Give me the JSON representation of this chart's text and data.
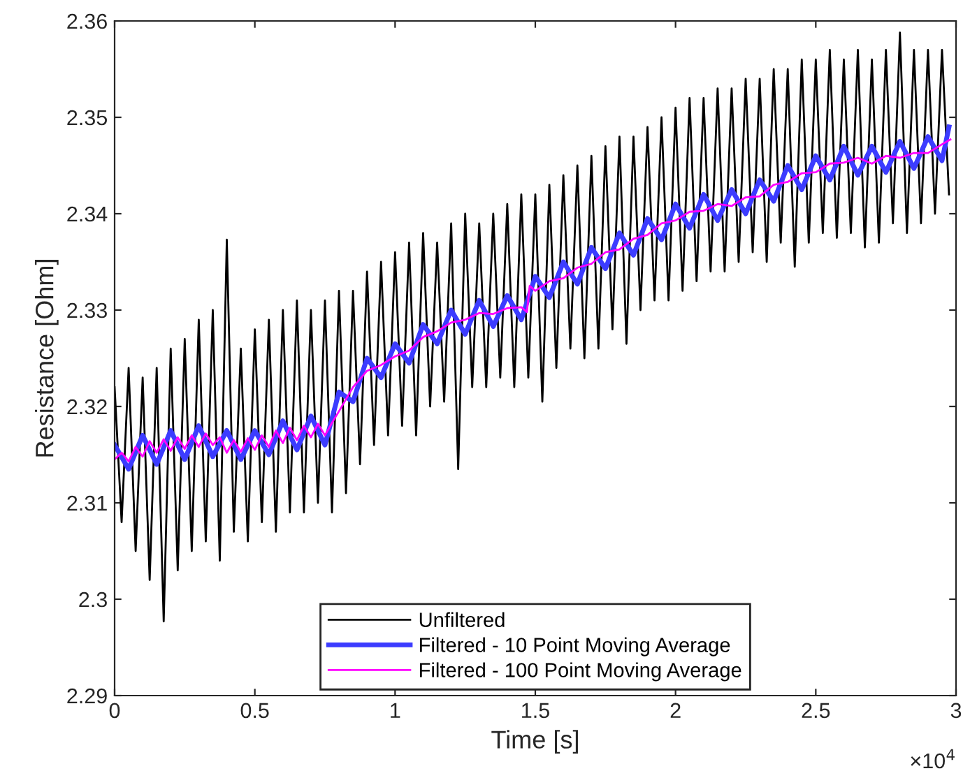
{
  "chart_data": {
    "type": "line",
    "xlabel": "Time [s]",
    "ylabel": "Resistance [Ohm]",
    "xlim": [
      0,
      3
    ],
    "ylim": [
      2.29,
      2.36
    ],
    "xticks": [
      0,
      0.5,
      1,
      1.5,
      2,
      2.5,
      3
    ],
    "yticks": [
      2.29,
      2.3,
      2.31,
      2.32,
      2.33,
      2.34,
      2.35,
      2.36
    ],
    "annotations": [
      "×10$^{4}$"
    ],
    "grid": false,
    "legend": "bottom",
    "series": [
      {
        "name": "Unfiltered",
        "color": "#000000",
        "x": [
          0,
          0.025,
          0.05,
          0.075,
          0.1,
          0.125,
          0.15,
          0.175,
          0.2,
          0.225,
          0.25,
          0.275,
          0.3,
          0.325,
          0.35,
          0.375,
          0.4,
          0.425,
          0.45,
          0.475,
          0.5,
          0.525,
          0.55,
          0.575,
          0.6,
          0.625,
          0.65,
          0.675,
          0.7,
          0.725,
          0.75,
          0.775,
          0.8,
          0.825,
          0.85,
          0.875,
          0.9,
          0.925,
          0.95,
          0.975,
          1,
          1.025,
          1.05,
          1.075,
          1.1,
          1.125,
          1.15,
          1.175,
          1.2,
          1.225,
          1.25,
          1.275,
          1.3,
          1.325,
          1.35,
          1.375,
          1.4,
          1.425,
          1.45,
          1.475,
          1.5,
          1.525,
          1.55,
          1.575,
          1.6,
          1.625,
          1.65,
          1.675,
          1.7,
          1.725,
          1.75,
          1.775,
          1.8,
          1.825,
          1.85,
          1.875,
          1.9,
          1.925,
          1.95,
          1.975,
          2,
          2.025,
          2.05,
          2.075,
          2.1,
          2.125,
          2.15,
          2.175,
          2.2,
          2.225,
          2.25,
          2.275,
          2.3,
          2.325,
          2.35,
          2.375,
          2.4,
          2.425,
          2.45,
          2.475,
          2.5,
          2.525,
          2.55,
          2.575,
          2.6,
          2.625,
          2.65,
          2.675,
          2.7,
          2.725,
          2.75,
          2.775,
          2.8,
          2.825,
          2.85,
          2.875,
          2.9,
          2.925,
          2.95,
          2.975
        ],
        "values": [
          2.322,
          2.308,
          2.324,
          2.305,
          2.323,
          2.302,
          2.324,
          2.2977,
          2.326,
          2.303,
          2.327,
          2.305,
          2.329,
          2.306,
          2.33,
          2.304,
          2.3373,
          2.307,
          2.326,
          2.306,
          2.328,
          2.308,
          2.329,
          2.307,
          2.33,
          2.309,
          2.331,
          2.309,
          2.33,
          2.31,
          2.331,
          2.309,
          2.332,
          2.311,
          2.332,
          2.314,
          2.334,
          2.316,
          2.335,
          2.317,
          2.336,
          2.318,
          2.337,
          2.317,
          2.338,
          2.32,
          2.337,
          2.3205,
          2.339,
          2.3135,
          2.34,
          2.322,
          2.339,
          2.322,
          2.34,
          2.323,
          2.341,
          2.322,
          2.342,
          2.323,
          2.342,
          2.3205,
          2.343,
          2.324,
          2.344,
          2.326,
          2.345,
          2.325,
          2.346,
          2.326,
          2.347,
          2.328,
          2.348,
          2.3265,
          2.348,
          2.33,
          2.349,
          2.331,
          2.35,
          2.331,
          2.351,
          2.332,
          2.352,
          2.333,
          2.352,
          2.334,
          2.353,
          2.334,
          2.353,
          2.335,
          2.354,
          2.336,
          2.354,
          2.335,
          2.355,
          2.337,
          2.355,
          2.3345,
          2.356,
          2.337,
          2.356,
          2.338,
          2.357,
          2.3375,
          2.356,
          2.338,
          2.357,
          2.3365,
          2.356,
          2.337,
          2.357,
          2.339,
          2.3588,
          2.338,
          2.357,
          2.339,
          2.357,
          2.34,
          2.357,
          2.342
        ]
      },
      {
        "name": "Filtered - 10 Point Moving Average",
        "color": "#3c3cff",
        "x": [
          0,
          0.05,
          0.1,
          0.15,
          0.2,
          0.25,
          0.3,
          0.35,
          0.4,
          0.45,
          0.5,
          0.55,
          0.6,
          0.65,
          0.7,
          0.75,
          0.8,
          0.85,
          0.9,
          0.95,
          1,
          1.05,
          1.1,
          1.15,
          1.2,
          1.25,
          1.3,
          1.35,
          1.4,
          1.45,
          1.5,
          1.55,
          1.6,
          1.65,
          1.7,
          1.75,
          1.8,
          1.85,
          1.9,
          1.95,
          2,
          2.05,
          2.1,
          2.15,
          2.2,
          2.25,
          2.3,
          2.35,
          2.4,
          2.45,
          2.5,
          2.55,
          2.6,
          2.65,
          2.7,
          2.75,
          2.8,
          2.85,
          2.9,
          2.95,
          2.975
        ],
        "values": [
          2.316,
          2.3135,
          2.317,
          2.314,
          2.3175,
          2.3145,
          2.318,
          2.3148,
          2.3175,
          2.3145,
          2.3175,
          2.315,
          2.3185,
          2.3155,
          2.319,
          2.316,
          2.3215,
          2.3205,
          2.325,
          2.323,
          2.3265,
          2.3245,
          2.3285,
          2.3265,
          2.33,
          2.3275,
          2.331,
          2.3283,
          2.3315,
          2.329,
          2.3335,
          2.3313,
          2.335,
          2.3327,
          2.3365,
          2.3343,
          2.338,
          2.3357,
          2.3395,
          2.3373,
          2.341,
          2.3385,
          2.342,
          2.3393,
          2.3425,
          2.34,
          2.3435,
          2.3413,
          2.345,
          2.3425,
          2.346,
          2.3435,
          2.347,
          2.344,
          2.347,
          2.3443,
          2.3475,
          2.3447,
          2.348,
          2.3455,
          2.349
        ]
      },
      {
        "name": "Filtered - 100 Point Moving Average",
        "color": "#ff00ff",
        "x": [
          0,
          0.025,
          0.05,
          0.075,
          0.1,
          0.125,
          0.15,
          0.175,
          0.2,
          0.225,
          0.25,
          0.275,
          0.3,
          0.325,
          0.35,
          0.375,
          0.4,
          0.425,
          0.45,
          0.475,
          0.5,
          0.525,
          0.55,
          0.575,
          0.6,
          0.625,
          0.65,
          0.675,
          0.7,
          0.725,
          0.75,
          0.775,
          0.8,
          0.85,
          0.9,
          0.95,
          1,
          1.05,
          1.1,
          1.15,
          1.2,
          1.25,
          1.3,
          1.35,
          1.4,
          1.45,
          1.47,
          1.48,
          1.5,
          1.55,
          1.6,
          1.65,
          1.7,
          1.75,
          1.8,
          1.85,
          1.9,
          1.95,
          2,
          2.05,
          2.1,
          2.15,
          2.2,
          2.25,
          2.3,
          2.35,
          2.4,
          2.45,
          2.5,
          2.55,
          2.6,
          2.65,
          2.7,
          2.75,
          2.8,
          2.85,
          2.9,
          2.95,
          2.98
        ],
        "values": [
          2.3145,
          2.3152,
          2.3143,
          2.3158,
          2.3148,
          2.3164,
          2.3152,
          2.3166,
          2.3154,
          2.3168,
          2.3156,
          2.317,
          2.3158,
          2.3172,
          2.316,
          2.3168,
          2.3152,
          2.3165,
          2.3153,
          2.3167,
          2.3155,
          2.317,
          2.3158,
          2.3175,
          2.3162,
          2.3178,
          2.3165,
          2.318,
          2.3168,
          2.3182,
          2.317,
          2.3183,
          2.3195,
          2.322,
          2.3237,
          2.3243,
          2.3252,
          2.3258,
          2.3272,
          2.3278,
          2.3287,
          2.329,
          2.3297,
          2.3296,
          2.3302,
          2.3303,
          2.3298,
          2.3325,
          2.332,
          2.333,
          2.3333,
          2.3344,
          2.3348,
          2.336,
          2.3363,
          2.3374,
          2.3378,
          2.339,
          2.3393,
          2.3402,
          2.3403,
          2.341,
          2.3408,
          2.3417,
          2.3418,
          2.343,
          2.3433,
          2.3442,
          2.3443,
          2.3452,
          2.3453,
          2.3458,
          2.3452,
          2.346,
          2.3458,
          2.3463,
          2.3463,
          2.3472,
          2.3477
        ]
      }
    ]
  }
}
